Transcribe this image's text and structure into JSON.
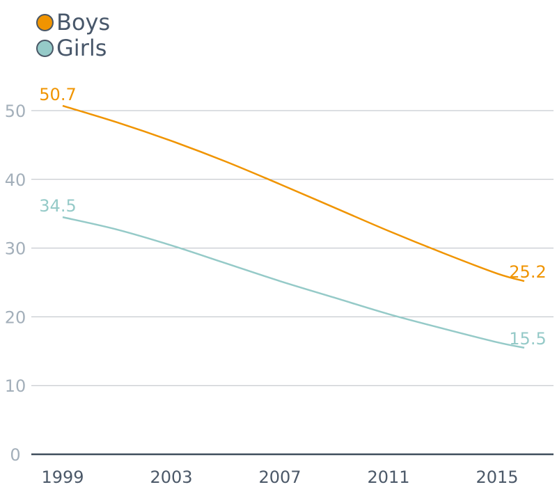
{
  "chart_data": {
    "type": "line",
    "x_ticks": [
      "1999",
      "2003",
      "2007",
      "2011",
      "2015"
    ],
    "y_ticks": [
      "0",
      "10",
      "20",
      "30",
      "40",
      "50"
    ],
    "ylim": [
      0,
      55
    ],
    "grid": true,
    "legend_position": "top-left",
    "series": [
      {
        "name": "Boys",
        "color": "#f09400",
        "x": [
          1999,
          2001,
          2003,
          2005,
          2007,
          2009,
          2011,
          2013,
          2015,
          2016
        ],
        "values": [
          50.7,
          48.3,
          45.6,
          42.6,
          39.3,
          35.9,
          32.5,
          29.3,
          26.3,
          25.2
        ],
        "start_label": "50.7",
        "end_label": "25.2"
      },
      {
        "name": "Girls",
        "color": "#95cac8",
        "x": [
          1999,
          2001,
          2003,
          2005,
          2007,
          2009,
          2011,
          2013,
          2015,
          2016
        ],
        "values": [
          34.5,
          32.7,
          30.4,
          27.8,
          25.2,
          22.8,
          20.4,
          18.3,
          16.3,
          15.5
        ],
        "start_label": "34.5",
        "end_label": "15.5"
      }
    ]
  }
}
